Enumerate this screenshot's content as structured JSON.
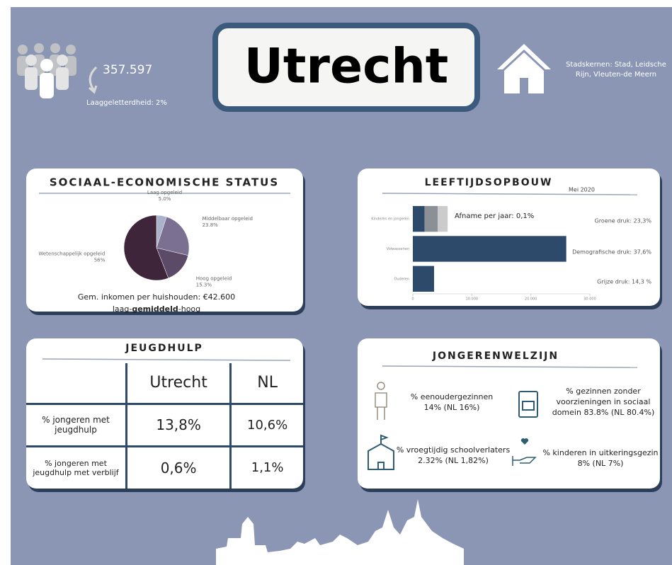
{
  "header": {
    "population": "357.597",
    "literacy": "Laaggeletterdheid: 2%",
    "title": "Utrecht",
    "city_cores": "Stadskernen: Stad, Leidsche Rijn, Vleuten-de Meern"
  },
  "chart_data": [
    {
      "type": "pie",
      "title": "SOCIAAL-ECONOMISCHE STATUS",
      "categories": [
        "Laag opgeleid",
        "Middelbaar opgeleid",
        "Hoog opgeleid",
        "Wetenschappelijk opgeleid"
      ],
      "values": [
        5.0,
        23.8,
        15.3,
        56
      ],
      "value_labels": [
        "5.0%",
        "23.8%",
        "15.3%",
        "56%"
      ],
      "colors": [
        "#a9b2cb",
        "#7c7092",
        "#5b4a68",
        "#3e2539"
      ],
      "annotations": [
        "Gem. inkomen per huishouden: €42.600",
        "laag-",
        "gemiddeld",
        "-hoog"
      ]
    },
    {
      "type": "bar",
      "orientation": "horizontal",
      "stacked": true,
      "title": "LEEFTIJDSOPBOUW",
      "subtitle": "Mei 2020",
      "categories": [
        "Kinderen en jongeren",
        "Volwassenen",
        "Ouderen"
      ],
      "series": [
        {
          "color": "#2e4a6a",
          "values": [
            2000,
            26000,
            3600
          ]
        },
        {
          "color": "#8b9097",
          "values": [
            2200,
            null,
            null
          ]
        },
        {
          "color": "#cbcbcb",
          "values": [
            1700,
            null,
            null
          ]
        }
      ],
      "xlim": [
        0,
        30000
      ],
      "xticks": [
        0,
        {
          "value": 10000,
          "label": "10.000"
        },
        {
          "value": 20000,
          "label": "20.000"
        },
        {
          "value": 30000,
          "label": "30.000"
        }
      ],
      "annotations": [
        "Afname per jaar: 0,1%",
        "Groene druk: 23,3%",
        "Demografische druk: 37,6%",
        "Grijze druk: 14,3 %"
      ]
    }
  ],
  "jeugdhulp": {
    "title": "JEUGDHULP",
    "columns": [
      "Utrecht",
      "NL"
    ],
    "rows": [
      [
        "% jongeren met jeugdhulp",
        "13,8%",
        "10,6%"
      ],
      [
        "% jongeren met jeugdhulp met verblijf",
        "0,6%",
        "1,1%"
      ]
    ]
  },
  "jongerenwelzijn": {
    "title": "JONGERENWELZIJN",
    "items": [
      "% eenoudergezinnen 14% (NL 16%)",
      "% gezinnen zonder voorzieningen in sociaal domein 83.8% (NL 80.4%)",
      "% vroegtijdig schoolverlaters 2.32% (NL 1,82%)",
      "% kinderen in uitkeringsgezin 8% (NL 7%)"
    ]
  }
}
